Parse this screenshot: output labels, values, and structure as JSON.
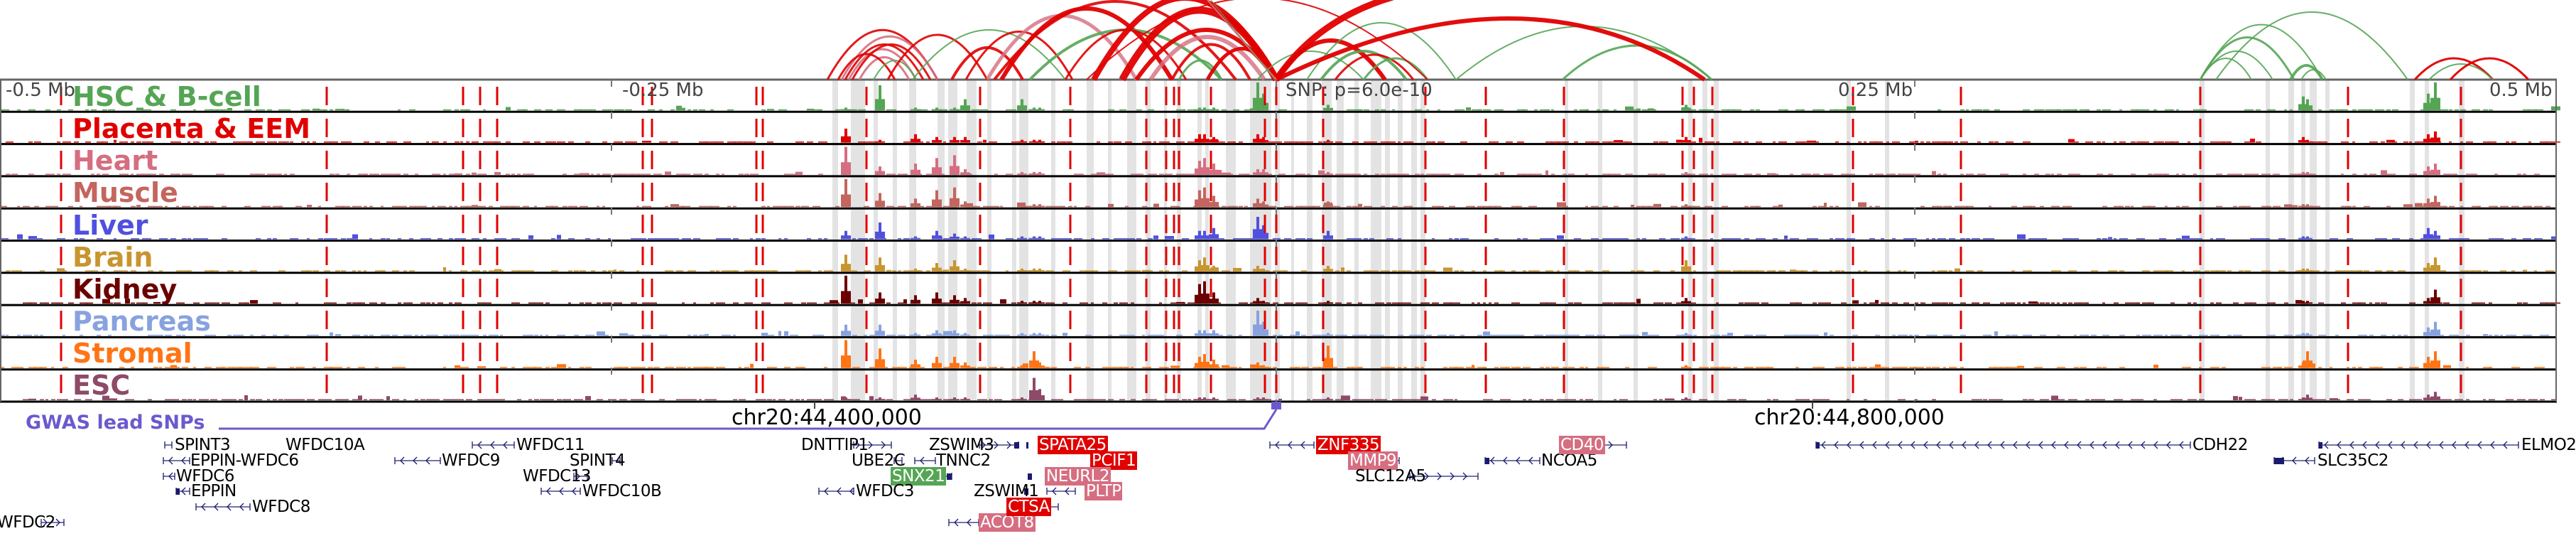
{
  "scale": {
    "left_label": "-0.5 Mb",
    "mid_left_label": "-0.25 Mb",
    "snp_label": "SNP: p=6.0e-10",
    "mid_right_label": "0.25 Mb",
    "right_label": "0.5 Mb"
  },
  "tracks": [
    {
      "label": "HSC & B-cell",
      "color": "#55a555"
    },
    {
      "label": "Placenta & EEM",
      "color": "#e00000"
    },
    {
      "label": "Heart",
      "color": "#d56e80"
    },
    {
      "label": "Muscle",
      "color": "#c4655e"
    },
    {
      "label": "Liver",
      "color": "#5050e0"
    },
    {
      "label": "Brain",
      "color": "#c8952e"
    },
    {
      "label": "Kidney",
      "color": "#6b0000"
    },
    {
      "label": "Pancreas",
      "color": "#88a2e0"
    },
    {
      "label": "Stromal",
      "color": "#ff7415"
    },
    {
      "label": "ESC",
      "color": "#8e4a68"
    }
  ],
  "coordinates": {
    "left": "chr20:44,400,000",
    "right": "chr20:44,800,000"
  },
  "gwas": {
    "label": "GWAS lead SNPs",
    "color": "#6a5acd"
  },
  "genes": [
    {
      "name": "SPINT3",
      "strand": "-",
      "highlight": null
    },
    {
      "name": "EPPIN-WFDC6",
      "strand": "-",
      "highlight": null
    },
    {
      "name": "WFDC6",
      "strand": "-",
      "highlight": null
    },
    {
      "name": "EPPIN",
      "strand": "-",
      "highlight": null
    },
    {
      "name": "WFDC8",
      "strand": "-",
      "highlight": null
    },
    {
      "name": "WFDC2",
      "strand": "+",
      "highlight": null
    },
    {
      "name": "WFDC10A",
      "strand": "-",
      "highlight": null
    },
    {
      "name": "WFDC9",
      "strand": "-",
      "highlight": null
    },
    {
      "name": "WFDC11",
      "strand": "-",
      "highlight": null
    },
    {
      "name": "SPINT4",
      "strand": "+",
      "highlight": null
    },
    {
      "name": "WFDC13",
      "strand": "+",
      "highlight": null
    },
    {
      "name": "WFDC10B",
      "strand": "-",
      "highlight": null
    },
    {
      "name": "DNTTIP1",
      "strand": "+",
      "highlight": null
    },
    {
      "name": "UBE2C",
      "strand": "+",
      "highlight": null
    },
    {
      "name": "TNNC2",
      "strand": "-",
      "highlight": null
    },
    {
      "name": "SNX21",
      "strand": "+",
      "highlight": "#55a555"
    },
    {
      "name": "WFDC3",
      "strand": "-",
      "highlight": null
    },
    {
      "name": "ZSWIM3",
      "strand": "+",
      "highlight": null
    },
    {
      "name": "ZSWIM1",
      "strand": "+",
      "highlight": null
    },
    {
      "name": "ACOT8",
      "strand": "-",
      "highlight": "#d56e80"
    },
    {
      "name": "CTSA",
      "strand": "+",
      "highlight": "#e00000"
    },
    {
      "name": "SPATA25",
      "strand": "-",
      "highlight": "#e00000"
    },
    {
      "name": "PCIF1",
      "strand": "+",
      "highlight": "#e00000"
    },
    {
      "name": "NEURL2",
      "strand": "-",
      "highlight": "#d56e80"
    },
    {
      "name": "PLTP",
      "strand": "-",
      "highlight": "#d56e80"
    },
    {
      "name": "ZNF335",
      "strand": "-",
      "highlight": "#e00000"
    },
    {
      "name": "MMP9",
      "strand": "+",
      "highlight": "#d56e80"
    },
    {
      "name": "SLC12A5",
      "strand": "+",
      "highlight": null
    },
    {
      "name": "NCOA5",
      "strand": "-",
      "highlight": null
    },
    {
      "name": "CD40",
      "strand": "+",
      "highlight": "#d56e80"
    },
    {
      "name": "CDH22",
      "strand": "-",
      "highlight": null
    },
    {
      "name": "SLC35C2",
      "strand": "-",
      "highlight": null
    },
    {
      "name": "ELMO2",
      "strand": "-",
      "highlight": null
    }
  ],
  "colors": {
    "snp_line": "#e00000",
    "highlight_band": "#e3e3e3",
    "gene_model": "#1a1a6e",
    "axis": "#444444"
  }
}
